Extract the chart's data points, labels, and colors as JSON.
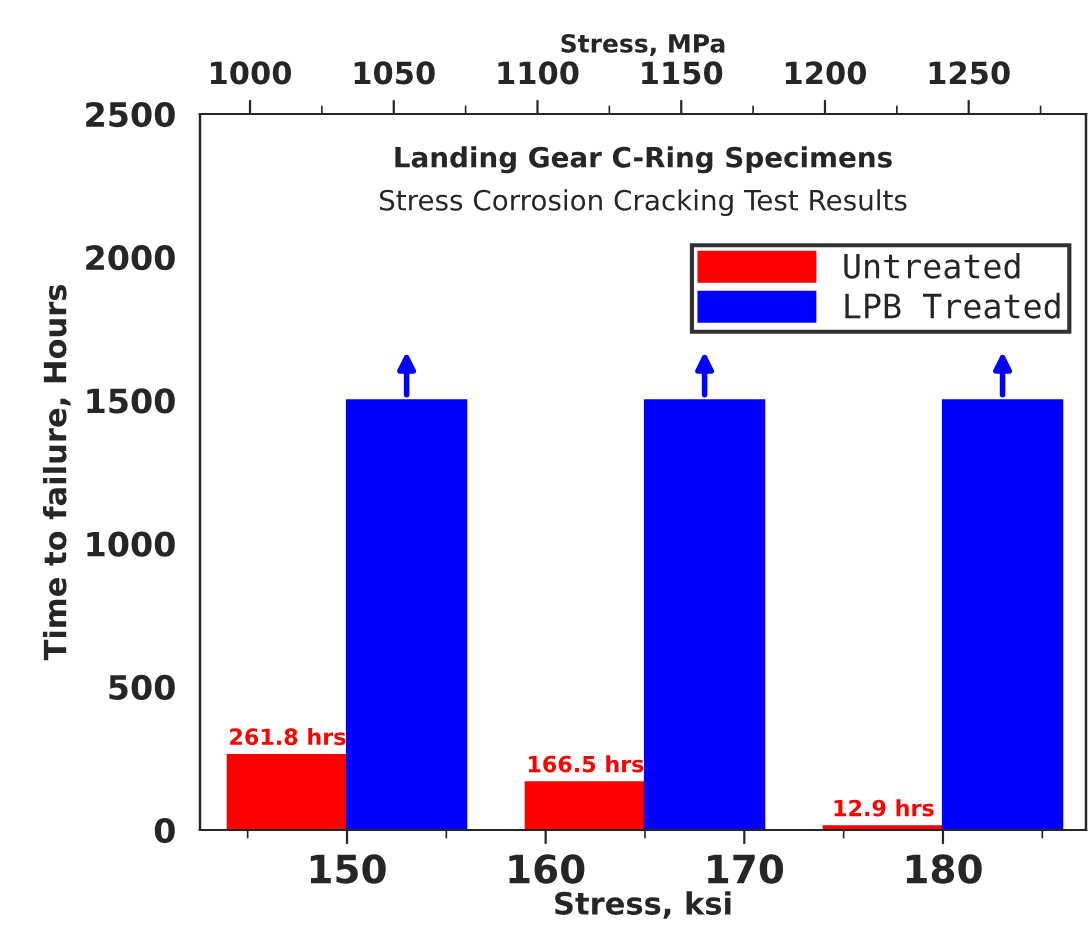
{
  "chart_data": {
    "type": "bar",
    "title": "Landing Gear C-Ring Specimens",
    "subtitle": "Stress Corrosion Cracking Test Results",
    "xlabel": "Stress, ksi",
    "ylabel": "Time to failure, Hours",
    "x2label": "Stress, MPa",
    "series": [
      {
        "name": "Untreated",
        "color": "#ff0000",
        "x": [
          147,
          162,
          177
        ],
        "values": [
          261.8,
          166.5,
          12.9
        ],
        "value_labels": [
          "261.8 hrs",
          "166.5 hrs",
          "12.9 hrs"
        ]
      },
      {
        "name": "LPB Treated",
        "color": "#0000ff",
        "x": [
          153,
          168,
          183
        ],
        "values": [
          1500,
          1500,
          1500
        ]
      }
    ],
    "xlim": [
      142.6,
      187.2
    ],
    "xticks": [
      150,
      160,
      170,
      180
    ],
    "x2lim": [
      982.6,
      1290.8
    ],
    "x2ticks": [
      1000,
      1050,
      1100,
      1150,
      1200,
      1250
    ],
    "ylim": [
      0,
      2500
    ],
    "yticks": [
      0,
      500,
      1000,
      1500,
      2000,
      2500
    ],
    "grid": false,
    "legend": "top right"
  }
}
